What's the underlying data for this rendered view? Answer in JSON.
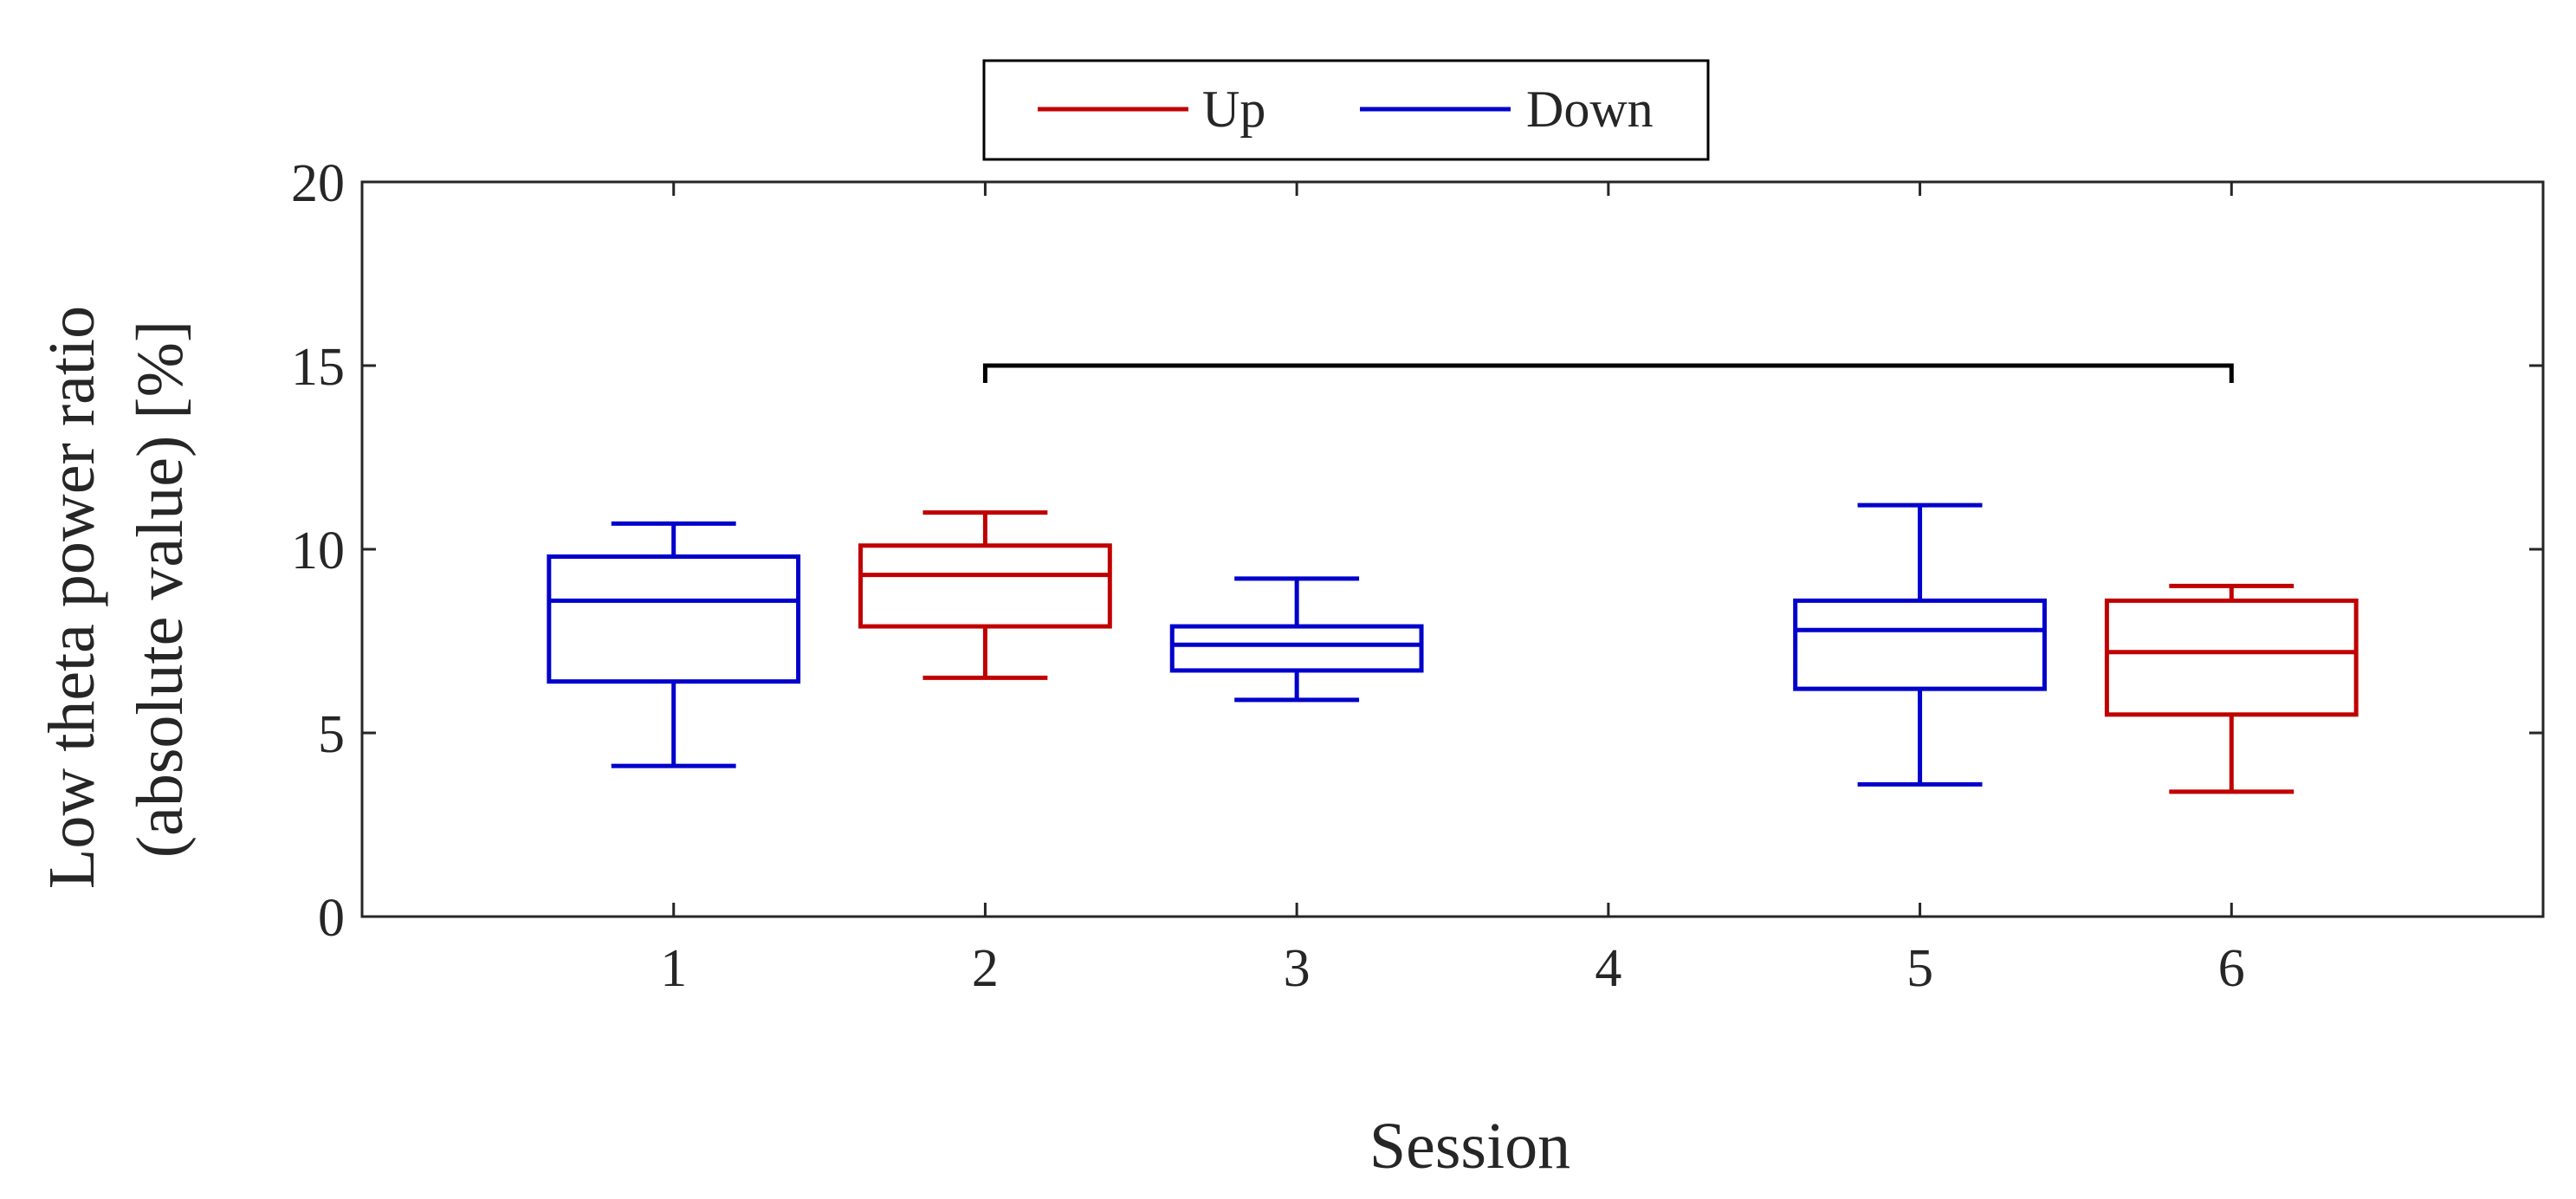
{
  "chart_data": {
    "type": "box",
    "xlabel": "Session",
    "ylabel_lines": [
      "Low theta power ratio",
      "(absolute value) [%]"
    ],
    "xticks": [
      "1",
      "2",
      "3",
      "4",
      "5",
      "6"
    ],
    "yticks": [
      "0",
      "5",
      "10",
      "15",
      "20"
    ],
    "xlim": [
      0,
      7
    ],
    "ylim": [
      0,
      20
    ],
    "legend": {
      "placement": "top-center",
      "entries": [
        {
          "label": "Up",
          "color": "#c00000"
        },
        {
          "label": "Down",
          "color": "#0000cc"
        }
      ]
    },
    "series": [
      {
        "name": "Up",
        "color": "#c00000",
        "boxes": [
          {
            "session": 2,
            "min": 6.5,
            "q1": 7.9,
            "median": 9.3,
            "q3": 10.1,
            "max": 11.0
          },
          {
            "session": 6,
            "min": 3.4,
            "q1": 5.5,
            "median": 7.2,
            "q3": 8.6,
            "max": 9.0
          }
        ]
      },
      {
        "name": "Down",
        "color": "#0000cc",
        "boxes": [
          {
            "session": 1,
            "min": 4.1,
            "q1": 6.4,
            "median": 8.6,
            "q3": 9.8,
            "max": 10.7
          },
          {
            "session": 3,
            "min": 5.9,
            "q1": 6.7,
            "median": 7.4,
            "q3": 7.9,
            "max": 9.2
          },
          {
            "session": 5,
            "min": 3.6,
            "q1": 6.2,
            "median": 7.8,
            "q3": 8.6,
            "max": 11.2
          }
        ]
      }
    ],
    "significance": [
      {
        "from": 2,
        "to": 6,
        "y": 15
      }
    ]
  }
}
